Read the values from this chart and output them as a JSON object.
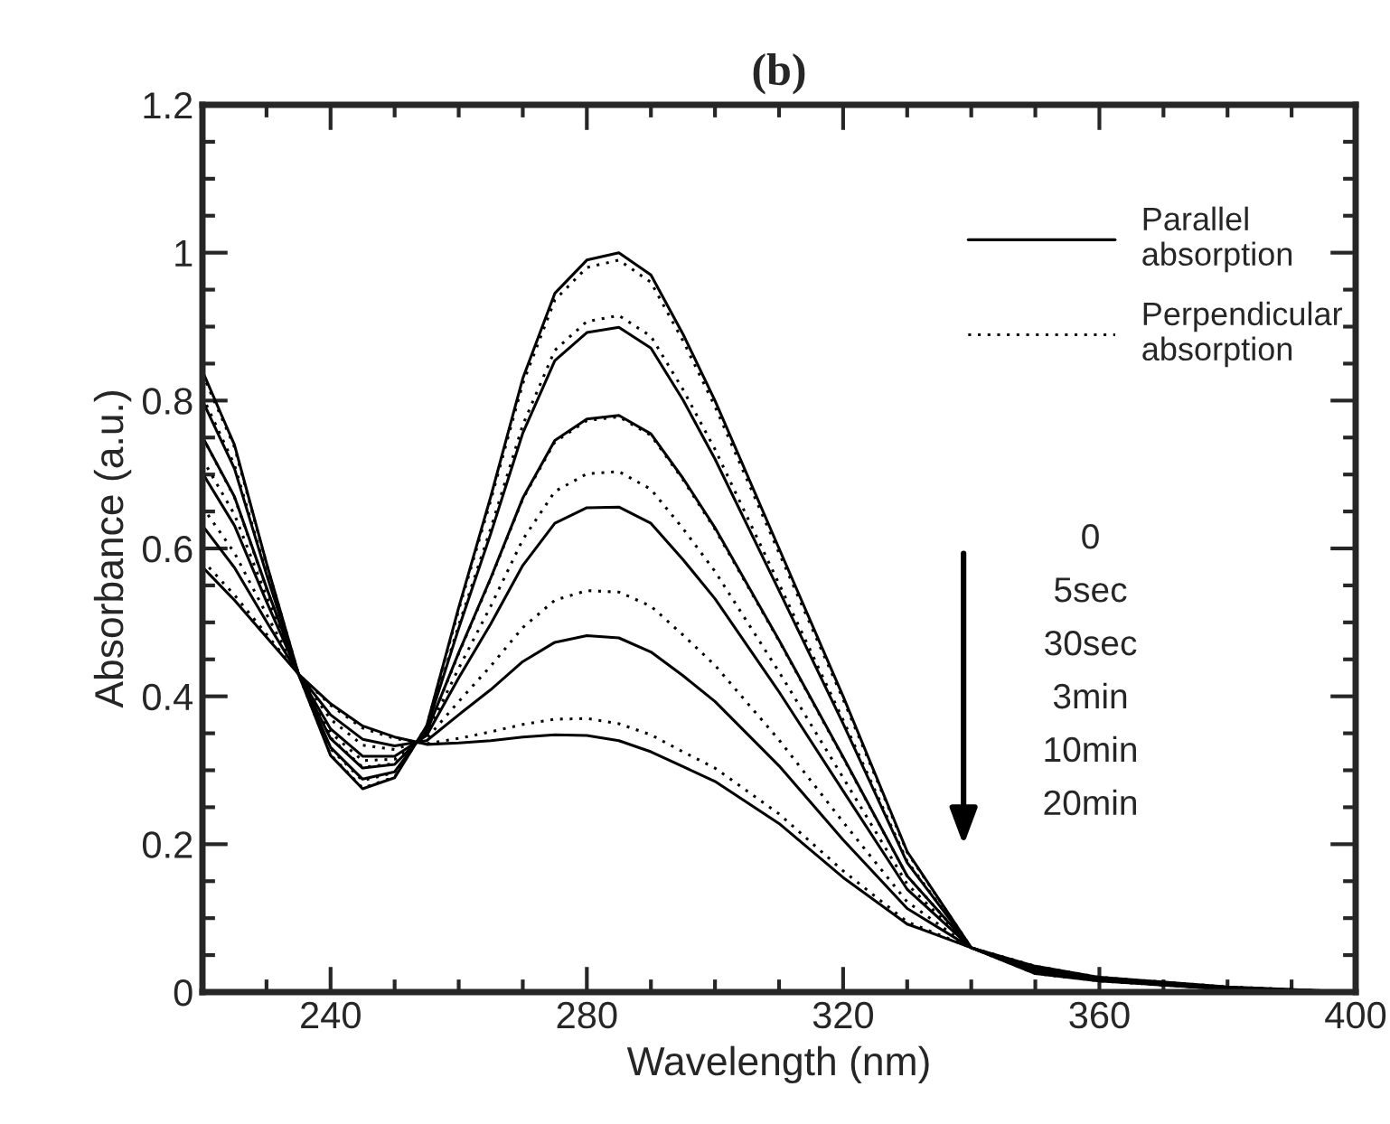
{
  "chart_data": {
    "type": "line",
    "title": "(b)",
    "xlabel": "Wavelength (nm)",
    "ylabel": "Absorbance (a.u.)",
    "x": [
      220,
      225,
      230,
      235,
      240,
      245,
      250,
      255,
      260,
      265,
      270,
      275,
      280,
      285,
      290,
      295,
      300,
      310,
      320,
      330,
      340,
      350,
      360,
      380,
      400
    ],
    "series": [
      {
        "name": "Parallel\nabsorption",
        "color": "#000000",
        "line_style": "solid",
        "values": [
          0.84,
          0.74,
          0.58,
          0.43,
          0.32,
          0.275,
          0.29,
          0.36,
          0.52,
          0.67,
          0.83,
          0.945,
          0.99,
          1.0,
          0.97,
          0.89,
          0.8,
          0.6,
          0.4,
          0.19,
          0.06,
          0.025,
          0.015,
          0.004,
          0
        ]
      },
      {
        "color": "#000000",
        "line_style": "solid",
        "values": [
          0.8,
          0.708,
          0.565,
          0.43,
          0.331,
          0.288,
          0.298,
          0.356,
          0.492,
          0.62,
          0.756,
          0.854,
          0.892,
          0.899,
          0.871,
          0.801,
          0.721,
          0.543,
          0.363,
          0.175,
          0.06,
          0.027,
          0.016,
          0.004,
          0
        ]
      },
      {
        "color": "#000000",
        "line_style": "solid",
        "values": [
          0.751,
          0.67,
          0.547,
          0.43,
          0.343,
          0.303,
          0.308,
          0.352,
          0.459,
          0.56,
          0.668,
          0.746,
          0.775,
          0.78,
          0.755,
          0.695,
          0.628,
          0.476,
          0.318,
          0.157,
          0.06,
          0.028,
          0.017,
          0.005,
          0
        ]
      },
      {
        "color": "#000000",
        "line_style": "solid",
        "values": [
          0.702,
          0.631,
          0.528,
          0.43,
          0.356,
          0.319,
          0.319,
          0.347,
          0.425,
          0.498,
          0.577,
          0.634,
          0.655,
          0.656,
          0.634,
          0.585,
          0.532,
          0.406,
          0.272,
          0.139,
          0.06,
          0.03,
          0.018,
          0.006,
          0
        ]
      },
      {
        "color": "#000000",
        "line_style": "solid",
        "values": [
          0.631,
          0.574,
          0.501,
          0.43,
          0.375,
          0.342,
          0.333,
          0.34,
          0.375,
          0.409,
          0.447,
          0.473,
          0.482,
          0.479,
          0.46,
          0.428,
          0.393,
          0.306,
          0.206,
          0.113,
          0.06,
          0.033,
          0.019,
          0.006,
          0
        ]
      },
      {
        "color": "#000000",
        "line_style": "solid",
        "values": [
          0.575,
          0.53,
          0.48,
          0.43,
          0.39,
          0.36,
          0.345,
          0.335,
          0.337,
          0.34,
          0.345,
          0.348,
          0.347,
          0.34,
          0.325,
          0.305,
          0.285,
          0.228,
          0.155,
          0.092,
          0.06,
          0.035,
          0.02,
          0.007,
          0
        ]
      },
      {
        "name": "Perpendicular\nabsorption",
        "color": "#000000",
        "line_style": "dotted",
        "values": [
          0.836,
          0.737,
          0.579,
          0.43,
          0.321,
          0.276,
          0.291,
          0.36,
          0.517,
          0.665,
          0.823,
          0.936,
          0.98,
          0.99,
          0.96,
          0.881,
          0.792,
          0.594,
          0.396,
          0.189,
          0.06,
          0.025,
          0.015,
          0.004,
          0
        ]
      },
      {
        "color": "#000000",
        "line_style": "dotted",
        "values": [
          0.806,
          0.713,
          0.567,
          0.43,
          0.329,
          0.286,
          0.297,
          0.357,
          0.496,
          0.627,
          0.767,
          0.868,
          0.907,
          0.915,
          0.887,
          0.815,
          0.734,
          0.552,
          0.368,
          0.177,
          0.06,
          0.026,
          0.016,
          0.004,
          0
        ]
      },
      {
        "color": "#000000",
        "line_style": "dotted",
        "values": [
          0.751,
          0.669,
          0.546,
          0.43,
          0.344,
          0.304,
          0.309,
          0.352,
          0.458,
          0.559,
          0.667,
          0.744,
          0.773,
          0.778,
          0.753,
          0.693,
          0.626,
          0.475,
          0.317,
          0.157,
          0.06,
          0.028,
          0.017,
          0.005,
          0
        ]
      },
      {
        "color": "#000000",
        "line_style": "dotted",
        "values": [
          0.721,
          0.646,
          0.535,
          0.43,
          0.351,
          0.313,
          0.315,
          0.349,
          0.438,
          0.522,
          0.612,
          0.677,
          0.701,
          0.704,
          0.68,
          0.627,
          0.569,
          0.433,
          0.29,
          0.146,
          0.06,
          0.029,
          0.017,
          0.005,
          0
        ]
      },
      {
        "color": "#000000",
        "line_style": "dotted",
        "values": [
          0.656,
          0.594,
          0.511,
          0.43,
          0.369,
          0.334,
          0.328,
          0.343,
          0.393,
          0.441,
          0.493,
          0.53,
          0.543,
          0.541,
          0.522,
          0.483,
          0.442,
          0.341,
          0.23,
          0.122,
          0.06,
          0.032,
          0.018,
          0.006,
          0
        ]
      },
      {
        "color": "#000000",
        "line_style": "dotted",
        "values": [
          0.584,
          0.537,
          0.484,
          0.43,
          0.388,
          0.357,
          0.343,
          0.336,
          0.343,
          0.352,
          0.362,
          0.369,
          0.37,
          0.363,
          0.348,
          0.325,
          0.303,
          0.241,
          0.164,
          0.095,
          0.06,
          0.035,
          0.02,
          0.007,
          0
        ]
      }
    ],
    "xlim": [
      220,
      400
    ],
    "xticks": [
      {
        "value": 230,
        "label": null
      },
      240,
      {
        "value": 250,
        "label": null
      },
      {
        "value": 260,
        "label": null
      },
      {
        "value": 270,
        "label": null
      },
      280,
      {
        "value": 290,
        "label": null
      },
      {
        "value": 300,
        "label": null
      },
      {
        "value": 310,
        "label": null
      },
      320,
      {
        "value": 330,
        "label": null
      },
      {
        "value": 340,
        "label": null
      },
      {
        "value": 350,
        "label": null
      },
      360,
      {
        "value": 370,
        "label": null
      },
      {
        "value": 380,
        "label": null
      },
      {
        "value": 390,
        "label": null
      },
      400
    ],
    "ylim": [
      0,
      1.2
    ],
    "yticks": [
      0,
      {
        "value": 0.05,
        "label": null
      },
      {
        "value": 0.1,
        "label": null
      },
      {
        "value": 0.15,
        "label": null
      },
      0.2,
      {
        "value": 0.25,
        "label": null
      },
      {
        "value": 0.3,
        "label": null
      },
      {
        "value": 0.35,
        "label": null
      },
      0.4,
      {
        "value": 0.45,
        "label": null
      },
      {
        "value": 0.5,
        "label": null
      },
      {
        "value": 0.55,
        "label": null
      },
      0.6,
      {
        "value": 0.65,
        "label": null
      },
      {
        "value": 0.7,
        "label": null
      },
      {
        "value": 0.75,
        "label": null
      },
      0.8,
      {
        "value": 0.85,
        "label": null
      },
      {
        "value": 0.9,
        "label": null
      },
      {
        "value": 0.95,
        "label": null
      },
      1,
      {
        "value": 1.05,
        "label": null
      },
      {
        "value": 1.1,
        "label": null
      },
      {
        "value": 1.15,
        "label": null
      },
      1.2
    ],
    "legend": "top right",
    "annotations": [
      "0",
      "5sec",
      "30sec",
      "3min",
      "10min",
      "20min"
    ]
  }
}
